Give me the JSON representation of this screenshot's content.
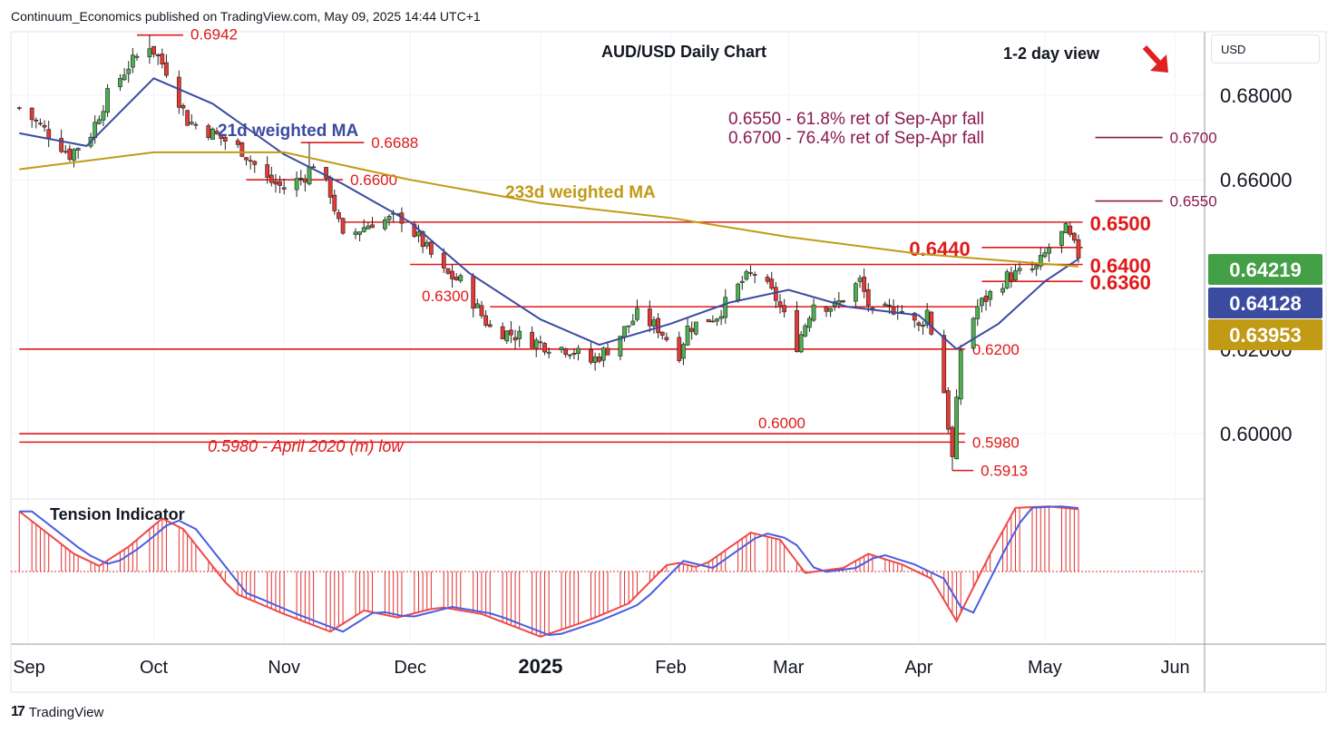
{
  "header": {
    "published": "Continuum_Economics published on TradingView.com, May 09, 2025 14:44 UTC+1",
    "currency": "USD"
  },
  "brand": {
    "name": "TradingView",
    "icon": "tradingview-logo-icon"
  },
  "colors": {
    "up": "#2e7d32",
    "down": "#d32f2f",
    "ma21": "#3b4ba0",
    "ma233": "#c19a16",
    "level": "#e01919",
    "fib": "#8b1a4f",
    "tension_fill": "#e03030",
    "tension_fast": "#f04848",
    "tension_slow": "#4a5de0"
  },
  "chart_data": {
    "type": "candlestick",
    "title": "AUD/USD Daily Chart",
    "view": "1-2 day view",
    "view_arrow": "down-right-arrow-icon",
    "ylim": [
      0.585,
      0.695
    ],
    "x_ticks": [
      {
        "label": "Sep",
        "date": "2024-09-01"
      },
      {
        "label": "Oct",
        "date": "2024-10-01"
      },
      {
        "label": "Nov",
        "date": "2024-11-01"
      },
      {
        "label": "Dec",
        "date": "2024-12-01"
      },
      {
        "label": "2025",
        "date": "2025-01-01",
        "bold": true
      },
      {
        "label": "Feb",
        "date": "2025-02-01"
      },
      {
        "label": "Mar",
        "date": "2025-03-01"
      },
      {
        "label": "Apr",
        "date": "2025-04-01"
      },
      {
        "label": "May",
        "date": "2025-05-01"
      },
      {
        "label": "Jun",
        "date": "2025-06-01"
      }
    ],
    "y_ticks": [
      {
        "label": "0.68000",
        "value": 0.68
      },
      {
        "label": "0.66000",
        "value": 0.66
      },
      {
        "label": "0.62000",
        "value": 0.62
      },
      {
        "label": "0.60000",
        "value": 0.6
      }
    ],
    "anchors": [
      [
        "2024-08-30",
        0.677
      ],
      [
        "2024-09-06",
        0.671
      ],
      [
        "2024-09-11",
        0.666
      ],
      [
        "2024-09-16",
        0.671
      ],
      [
        "2024-09-20",
        0.68
      ],
      [
        "2024-09-25",
        0.687
      ],
      [
        "2024-09-30",
        0.692
      ],
      [
        "2024-10-04",
        0.686
      ],
      [
        "2024-10-09",
        0.674
      ],
      [
        "2024-10-15",
        0.671
      ],
      [
        "2024-10-22",
        0.667
      ],
      [
        "2024-10-28",
        0.66
      ],
      [
        "2024-11-01",
        0.658
      ],
      [
        "2024-11-06",
        0.661
      ],
      [
        "2024-11-08",
        0.664
      ],
      [
        "2024-11-12",
        0.657
      ],
      [
        "2024-11-15",
        0.646
      ],
      [
        "2024-11-22",
        0.65
      ],
      [
        "2024-11-29",
        0.651
      ],
      [
        "2024-12-04",
        0.645
      ],
      [
        "2024-12-09",
        0.638
      ],
      [
        "2024-12-13",
        0.636
      ],
      [
        "2024-12-18",
        0.628
      ],
      [
        "2024-12-20",
        0.625
      ],
      [
        "2024-12-27",
        0.623
      ],
      [
        "2025-01-02",
        0.621
      ],
      [
        "2025-01-08",
        0.62
      ],
      [
        "2025-01-13",
        0.617
      ],
      [
        "2025-01-17",
        0.62
      ],
      [
        "2025-01-24",
        0.628
      ],
      [
        "2025-01-29",
        0.625
      ],
      [
        "2025-02-03",
        0.619
      ],
      [
        "2025-02-05",
        0.625
      ],
      [
        "2025-02-12",
        0.628
      ],
      [
        "2025-02-18",
        0.636
      ],
      [
        "2025-02-21",
        0.638
      ],
      [
        "2025-02-26",
        0.632
      ],
      [
        "2025-03-03",
        0.621
      ],
      [
        "2025-03-07",
        0.631
      ],
      [
        "2025-03-12",
        0.63
      ],
      [
        "2025-03-18",
        0.636
      ],
      [
        "2025-03-21",
        0.628
      ],
      [
        "2025-03-27",
        0.63
      ],
      [
        "2025-04-01",
        0.625
      ],
      [
        "2025-04-03",
        0.629
      ],
      [
        "2025-04-07",
        0.61
      ],
      [
        "2025-04-09",
        0.594
      ],
      [
        "2025-04-11",
        0.62
      ],
      [
        "2025-04-15",
        0.63
      ],
      [
        "2025-04-22",
        0.637
      ],
      [
        "2025-04-29",
        0.639
      ],
      [
        "2025-05-02",
        0.644
      ],
      [
        "2025-05-06",
        0.648
      ],
      [
        "2025-05-09",
        0.6422
      ]
    ],
    "candles_key_points": [
      {
        "date": "2024-09-30",
        "high": 0.6942
      },
      {
        "date": "2024-11-07",
        "high": 0.6688
      },
      {
        "date": "2025-04-09",
        "low": 0.5913
      }
    ],
    "moving_averages": [
      {
        "name": "21d weighted MA",
        "color": "#3b4ba0",
        "last": 0.64128,
        "points": [
          [
            "2024-08-30",
            0.671
          ],
          [
            "2024-09-15",
            0.668
          ],
          [
            "2024-10-01",
            0.684
          ],
          [
            "2024-10-15",
            0.678
          ],
          [
            "2024-11-01",
            0.666
          ],
          [
            "2024-11-15",
            0.659
          ],
          [
            "2024-12-01",
            0.65
          ],
          [
            "2024-12-15",
            0.638
          ],
          [
            "2025-01-01",
            0.627
          ],
          [
            "2025-01-15",
            0.621
          ],
          [
            "2025-02-01",
            0.626
          ],
          [
            "2025-02-15",
            0.631
          ],
          [
            "2025-03-01",
            0.634
          ],
          [
            "2025-03-15",
            0.63
          ],
          [
            "2025-04-01",
            0.628
          ],
          [
            "2025-04-10",
            0.62
          ],
          [
            "2025-04-20",
            0.626
          ],
          [
            "2025-05-01",
            0.636
          ],
          [
            "2025-05-09",
            0.6413
          ]
        ]
      },
      {
        "name": "233d weighted MA",
        "color": "#c19a16",
        "last": 0.63953,
        "points": [
          [
            "2024-08-30",
            0.6625
          ],
          [
            "2024-10-01",
            0.6665
          ],
          [
            "2024-11-01",
            0.6665
          ],
          [
            "2024-12-01",
            0.66
          ],
          [
            "2025-01-01",
            0.6545
          ],
          [
            "2025-02-01",
            0.651
          ],
          [
            "2025-03-01",
            0.6465
          ],
          [
            "2025-04-01",
            0.6425
          ],
          [
            "2025-05-09",
            0.6395
          ]
        ]
      }
    ],
    "levels": [
      {
        "label": "0.6942",
        "value": 0.6942,
        "from": "2024-09-27",
        "to": "2024-10-08",
        "label_size": "normal"
      },
      {
        "label": "0.6688",
        "value": 0.6688,
        "from": "2024-11-05",
        "to": "2024-11-20",
        "label_size": "normal"
      },
      {
        "label": "0.6600",
        "value": 0.66,
        "from": "2024-10-23",
        "to": "2024-11-15",
        "label_size": "normal"
      },
      {
        "label": "0.6500",
        "value": 0.65,
        "from": "2024-11-15",
        "to": "2025-05-10",
        "label_size": "large"
      },
      {
        "label": "0.6440",
        "value": 0.644,
        "from": "2025-04-16",
        "to": "2025-05-10",
        "label_size": "large",
        "label_side": "left"
      },
      {
        "label": "0.6400",
        "value": 0.64,
        "from": "2024-12-01",
        "to": "2025-05-10",
        "label_size": "large"
      },
      {
        "label": "0.6360",
        "value": 0.636,
        "from": "2025-04-16",
        "to": "2025-05-10",
        "label_size": "large"
      },
      {
        "label": "0.6300",
        "value": 0.63,
        "from": "2024-12-20",
        "to": "2025-04-15",
        "label_size": "normal",
        "label_side": "left"
      },
      {
        "label": "0.6200",
        "value": 0.62,
        "from": "2024-08-30",
        "to": "2025-04-12",
        "label_size": "normal"
      },
      {
        "label": "0.6000",
        "value": 0.6,
        "from": "2024-08-30",
        "to": "2025-04-12",
        "label_size": "normal",
        "label_side": "left"
      },
      {
        "label": "0.5980",
        "value": 0.598,
        "from": "2024-08-30",
        "to": "2025-04-12",
        "label_size": "normal"
      },
      {
        "label": "0.5913",
        "value": 0.5913,
        "from": "2025-04-09",
        "to": "2025-04-14",
        "label_size": "normal"
      }
    ],
    "fib_levels": [
      {
        "label": "0.6700",
        "value": 0.67,
        "from": "2025-05-13",
        "to": "2025-05-29"
      },
      {
        "label": "0.6550",
        "value": 0.655,
        "from": "2025-05-13",
        "to": "2025-05-29"
      }
    ],
    "annotations": [
      {
        "text": "21d weighted MA",
        "color": "#3b4ba0"
      },
      {
        "text": "233d weighted MA",
        "color": "#c19a16"
      },
      {
        "text": "0.6550 - 61.8% ret of Sep-Apr fall",
        "color": "#8b1a4f"
      },
      {
        "text": "0.6700 - 76.4% ret of Sep-Apr fall",
        "color": "#8b1a4f"
      },
      {
        "text": "0.5980 - April 2020 (m) low",
        "color": "#e01919"
      }
    ],
    "price_tags": [
      {
        "label": "0.64219",
        "value": 0.64219,
        "color": "#43a047",
        "name": "last-price-tag"
      },
      {
        "label": "0.64128",
        "value": 0.64128,
        "color": "#3b4ba0",
        "name": "ma21-price-tag"
      },
      {
        "label": "0.63953",
        "value": 0.63953,
        "color": "#c19a16",
        "name": "ma233-price-tag"
      }
    ],
    "tension": {
      "title": "Tension Indicator",
      "ylim": [
        -1.0,
        1.0
      ],
      "points": [
        [
          "2024-08-30",
          0.85
        ],
        [
          "2024-09-12",
          0.25
        ],
        [
          "2024-09-18",
          0.08
        ],
        [
          "2024-09-25",
          0.35
        ],
        [
          "2024-10-03",
          0.75
        ],
        [
          "2024-10-08",
          0.6
        ],
        [
          "2024-10-20",
          -0.3
        ],
        [
          "2024-11-01",
          -0.6
        ],
        [
          "2024-11-12",
          -0.85
        ],
        [
          "2024-11-20",
          -0.55
        ],
        [
          "2024-11-28",
          -0.65
        ],
        [
          "2024-12-08",
          -0.5
        ],
        [
          "2024-12-18",
          -0.6
        ],
        [
          "2025-01-01",
          -0.92
        ],
        [
          "2025-01-12",
          -0.7
        ],
        [
          "2025-01-22",
          -0.45
        ],
        [
          "2025-02-01",
          0.15
        ],
        [
          "2025-02-08",
          0.05
        ],
        [
          "2025-02-20",
          0.55
        ],
        [
          "2025-02-27",
          0.45
        ],
        [
          "2025-03-05",
          -0.02
        ],
        [
          "2025-03-14",
          0.05
        ],
        [
          "2025-03-20",
          0.25
        ],
        [
          "2025-03-28",
          0.1
        ],
        [
          "2025-04-04",
          -0.1
        ],
        [
          "2025-04-10",
          -0.7
        ],
        [
          "2025-04-18",
          0.25
        ],
        [
          "2025-04-24",
          0.9
        ],
        [
          "2025-05-02",
          0.92
        ],
        [
          "2025-05-09",
          0.88
        ]
      ]
    }
  }
}
